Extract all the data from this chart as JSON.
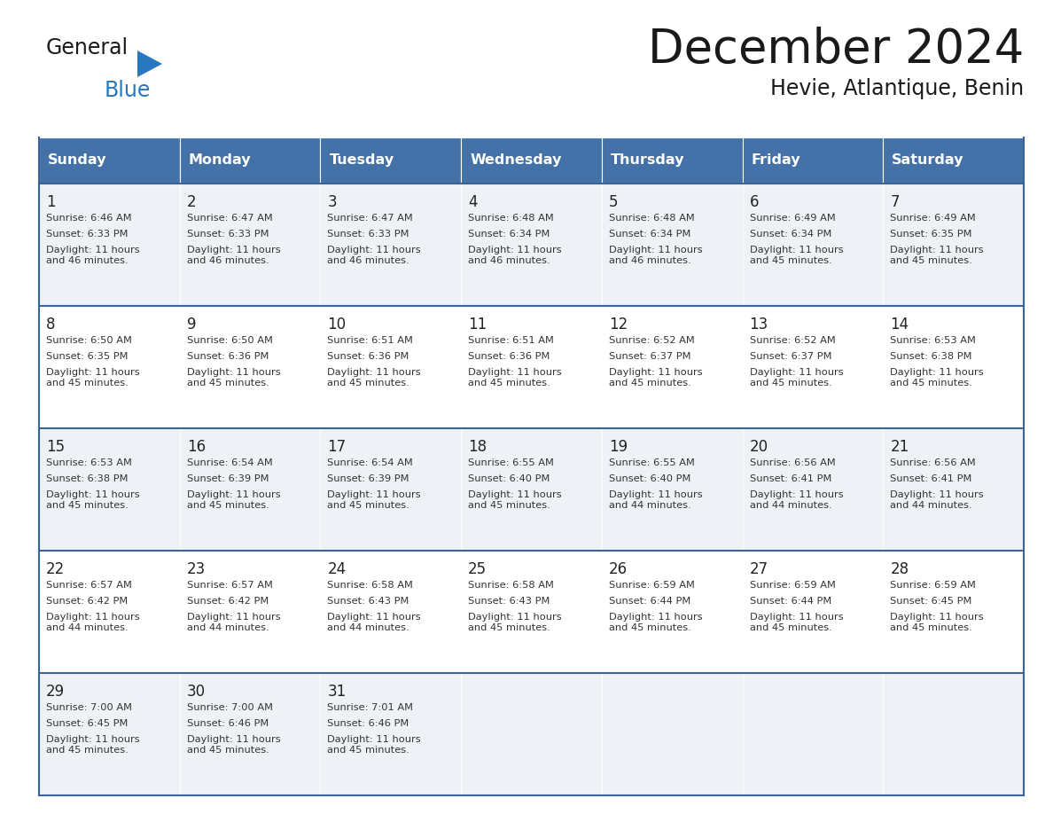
{
  "title": "December 2024",
  "subtitle": "Hevie, Atlantique, Benin",
  "days_of_week": [
    "Sunday",
    "Monday",
    "Tuesday",
    "Wednesday",
    "Thursday",
    "Friday",
    "Saturday"
  ],
  "header_bg": "#4472a8",
  "header_text": "#ffffff",
  "row_bg_odd": "#eef2f7",
  "row_bg_even": "#ffffff",
  "border_color": "#3a6496",
  "day_num_color": "#222222",
  "cell_text_color": "#333333",
  "weeks": [
    [
      {
        "day": 1,
        "sunrise": "6:46 AM",
        "sunset": "6:33 PM",
        "daylight": "11 hours\nand 46 minutes."
      },
      {
        "day": 2,
        "sunrise": "6:47 AM",
        "sunset": "6:33 PM",
        "daylight": "11 hours\nand 46 minutes."
      },
      {
        "day": 3,
        "sunrise": "6:47 AM",
        "sunset": "6:33 PM",
        "daylight": "11 hours\nand 46 minutes."
      },
      {
        "day": 4,
        "sunrise": "6:48 AM",
        "sunset": "6:34 PM",
        "daylight": "11 hours\nand 46 minutes."
      },
      {
        "day": 5,
        "sunrise": "6:48 AM",
        "sunset": "6:34 PM",
        "daylight": "11 hours\nand 46 minutes."
      },
      {
        "day": 6,
        "sunrise": "6:49 AM",
        "sunset": "6:34 PM",
        "daylight": "11 hours\nand 45 minutes."
      },
      {
        "day": 7,
        "sunrise": "6:49 AM",
        "sunset": "6:35 PM",
        "daylight": "11 hours\nand 45 minutes."
      }
    ],
    [
      {
        "day": 8,
        "sunrise": "6:50 AM",
        "sunset": "6:35 PM",
        "daylight": "11 hours\nand 45 minutes."
      },
      {
        "day": 9,
        "sunrise": "6:50 AM",
        "sunset": "6:36 PM",
        "daylight": "11 hours\nand 45 minutes."
      },
      {
        "day": 10,
        "sunrise": "6:51 AM",
        "sunset": "6:36 PM",
        "daylight": "11 hours\nand 45 minutes."
      },
      {
        "day": 11,
        "sunrise": "6:51 AM",
        "sunset": "6:36 PM",
        "daylight": "11 hours\nand 45 minutes."
      },
      {
        "day": 12,
        "sunrise": "6:52 AM",
        "sunset": "6:37 PM",
        "daylight": "11 hours\nand 45 minutes."
      },
      {
        "day": 13,
        "sunrise": "6:52 AM",
        "sunset": "6:37 PM",
        "daylight": "11 hours\nand 45 minutes."
      },
      {
        "day": 14,
        "sunrise": "6:53 AM",
        "sunset": "6:38 PM",
        "daylight": "11 hours\nand 45 minutes."
      }
    ],
    [
      {
        "day": 15,
        "sunrise": "6:53 AM",
        "sunset": "6:38 PM",
        "daylight": "11 hours\nand 45 minutes."
      },
      {
        "day": 16,
        "sunrise": "6:54 AM",
        "sunset": "6:39 PM",
        "daylight": "11 hours\nand 45 minutes."
      },
      {
        "day": 17,
        "sunrise": "6:54 AM",
        "sunset": "6:39 PM",
        "daylight": "11 hours\nand 45 minutes."
      },
      {
        "day": 18,
        "sunrise": "6:55 AM",
        "sunset": "6:40 PM",
        "daylight": "11 hours\nand 45 minutes."
      },
      {
        "day": 19,
        "sunrise": "6:55 AM",
        "sunset": "6:40 PM",
        "daylight": "11 hours\nand 44 minutes."
      },
      {
        "day": 20,
        "sunrise": "6:56 AM",
        "sunset": "6:41 PM",
        "daylight": "11 hours\nand 44 minutes."
      },
      {
        "day": 21,
        "sunrise": "6:56 AM",
        "sunset": "6:41 PM",
        "daylight": "11 hours\nand 44 minutes."
      }
    ],
    [
      {
        "day": 22,
        "sunrise": "6:57 AM",
        "sunset": "6:42 PM",
        "daylight": "11 hours\nand 44 minutes."
      },
      {
        "day": 23,
        "sunrise": "6:57 AM",
        "sunset": "6:42 PM",
        "daylight": "11 hours\nand 44 minutes."
      },
      {
        "day": 24,
        "sunrise": "6:58 AM",
        "sunset": "6:43 PM",
        "daylight": "11 hours\nand 44 minutes."
      },
      {
        "day": 25,
        "sunrise": "6:58 AM",
        "sunset": "6:43 PM",
        "daylight": "11 hours\nand 45 minutes."
      },
      {
        "day": 26,
        "sunrise": "6:59 AM",
        "sunset": "6:44 PM",
        "daylight": "11 hours\nand 45 minutes."
      },
      {
        "day": 27,
        "sunrise": "6:59 AM",
        "sunset": "6:44 PM",
        "daylight": "11 hours\nand 45 minutes."
      },
      {
        "day": 28,
        "sunrise": "6:59 AM",
        "sunset": "6:45 PM",
        "daylight": "11 hours\nand 45 minutes."
      }
    ],
    [
      {
        "day": 29,
        "sunrise": "7:00 AM",
        "sunset": "6:45 PM",
        "daylight": "11 hours\nand 45 minutes."
      },
      {
        "day": 30,
        "sunrise": "7:00 AM",
        "sunset": "6:46 PM",
        "daylight": "11 hours\nand 45 minutes."
      },
      {
        "day": 31,
        "sunrise": "7:01 AM",
        "sunset": "6:46 PM",
        "daylight": "11 hours\nand 45 minutes."
      },
      null,
      null,
      null,
      null
    ]
  ],
  "logo_general_color": "#1a1a1a",
  "logo_blue_color": "#2878c0",
  "logo_triangle_color": "#2878c0"
}
